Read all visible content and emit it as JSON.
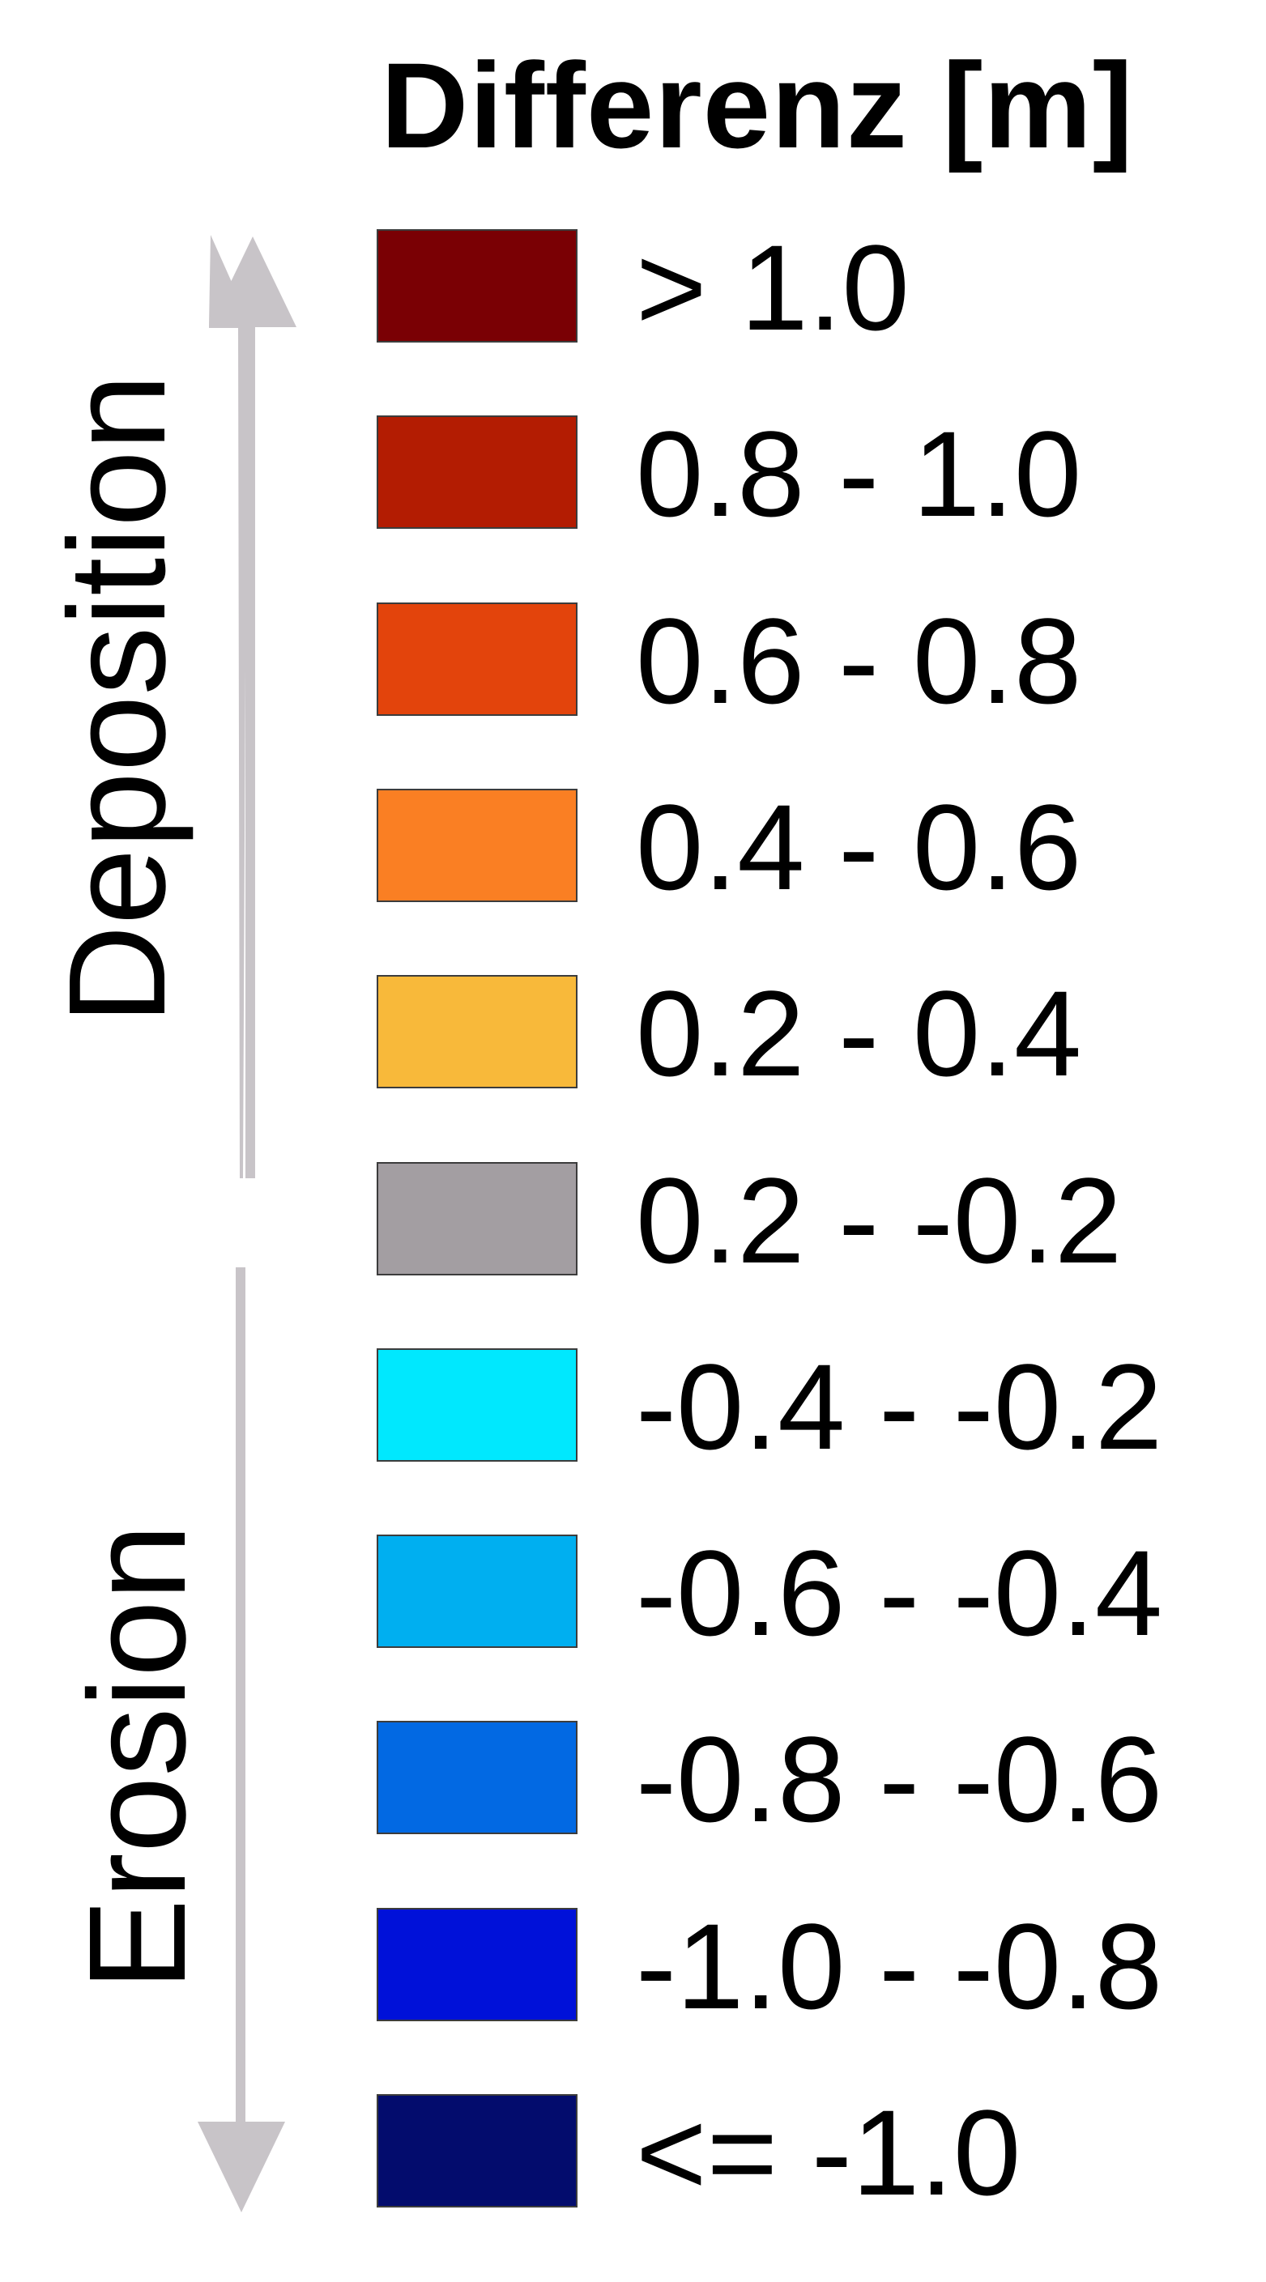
{
  "legend": {
    "title": "Differenz [m]",
    "deposition_label": "Deposition",
    "erosion_label": "Erosion",
    "arrow_color": "#c8c4c8",
    "items": [
      {
        "label": "> 1.0",
        "color": "#7a0004"
      },
      {
        "label": "0.8 - 1.0",
        "color": "#b31c02"
      },
      {
        "label": "0.6 - 0.8",
        "color": "#e3440c"
      },
      {
        "label": "0.4 - 0.6",
        "color": "#fa7f23"
      },
      {
        "label": "0.2 - 0.4",
        "color": "#f8b93a"
      },
      {
        "label": "0.2 - -0.2",
        "color": "#a39ea2"
      },
      {
        "label": "-0.4 - -0.2",
        "color": "#00e8fe"
      },
      {
        "label": "-0.6 - -0.4",
        "color": "#00aff0"
      },
      {
        "label": "-0.8 - -0.6",
        "color": "#0269e3"
      },
      {
        "label": "-1.0 - -0.8",
        "color": "#0011d9"
      },
      {
        "label": "<= -1.0",
        "color": "#030c6d"
      }
    ]
  }
}
